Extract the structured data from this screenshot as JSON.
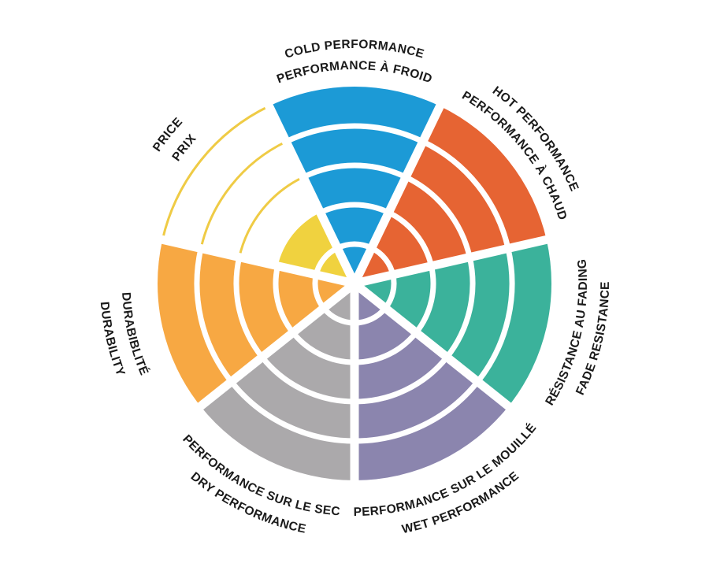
{
  "page": {
    "background_color": "#FFFFFF",
    "label_text_color": "#1A1A1A"
  },
  "chart_data": {
    "type": "polar-rating-wheel",
    "title": "",
    "max_rating": 5,
    "levels_per_sector": 5,
    "legend_position": "none",
    "grid": "concentric-arcs",
    "sectors": [
      {
        "id": "cold",
        "label_en": "COLD PERFORMANCE",
        "label_fr": "PERFORMANCE À FROID",
        "color": "#1C9AD6",
        "rating": 5
      },
      {
        "id": "hot",
        "label_en": "HOT PERFORMANCE",
        "label_fr": "PERFORMANCE À CHAUD",
        "color": "#E66433",
        "rating": 5
      },
      {
        "id": "fade",
        "label_en": "FADE RESISTANCE",
        "label_fr": "RÉSISTANCE AU FADING",
        "color": "#3BB29B",
        "rating": 5
      },
      {
        "id": "wet",
        "label_en": "WET PERFORMANCE",
        "label_fr": "PERFORMANCE SUR LE MOUILLÉ",
        "color": "#8B85AE",
        "rating": 5
      },
      {
        "id": "dry",
        "label_en": "DRY PERFORMANCE",
        "label_fr": "PERFORMANCE SUR LE SEC",
        "color": "#ABA9AB",
        "rating": 5
      },
      {
        "id": "durability",
        "label_en": "DURABILITY",
        "label_fr": "DURABIBLITÉ",
        "color": "#F7A843",
        "rating": 5
      },
      {
        "id": "price",
        "label_en": "PRICE",
        "label_fr": "PRIX",
        "color": "#F0D23F",
        "outline_color": "#EFCB45",
        "rating": 2
      }
    ]
  }
}
